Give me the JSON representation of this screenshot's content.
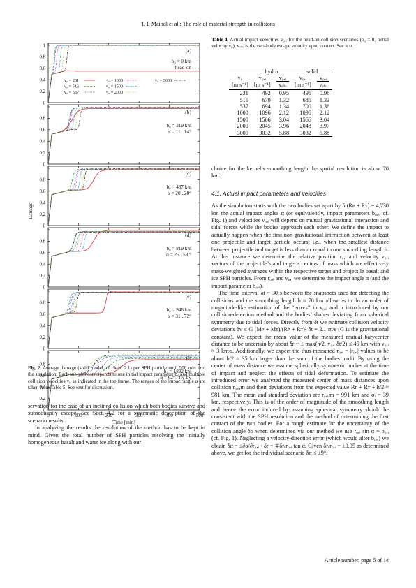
{
  "running_head": "T. I. Maindl  et al.: The role of material strength in collisions",
  "figure": {
    "y_axis_label": "Damage",
    "x_axis_label": "Time [min]",
    "x_ticks": [
      "0",
      "100",
      "200",
      "300",
      "400",
      "500"
    ],
    "y_ticks": [
      "0",
      "0.2",
      "0.4",
      "0.6",
      "0.8",
      "1"
    ],
    "legend": [
      {
        "label": "v₀ = 231",
        "color": "#e0262e",
        "dash": "solid"
      },
      {
        "label": "v₀ = 516",
        "color": "#2ca24a",
        "dash": "dashed"
      },
      {
        "label": "v₀ = 537",
        "color": "#2f3fd2",
        "dash": "dotted"
      },
      {
        "label": "v₀ = 1000",
        "color": "#d01ad0",
        "dash": "dotted"
      },
      {
        "label": "v₀ = 1500",
        "color": "#1cc6c6",
        "dash": "dashdot"
      },
      {
        "label": "v₀ = 2000",
        "color": "#d4b800",
        "dash": "dotted"
      },
      {
        "label": "v₀ = 3000",
        "color": "#333333",
        "dash": "dashdot"
      }
    ],
    "panels": [
      {
        "letter": "(a)",
        "line1": "b₀ = 0 km",
        "line2": "head-on"
      },
      {
        "letter": "(b)",
        "line1": "b₀ = 219 km",
        "line2": "α = 11...14°"
      },
      {
        "letter": "(c)",
        "line1": "b₀ = 437 km",
        "line2": "α = 20...28°"
      },
      {
        "letter": "(d)",
        "line1": "b₀ = 819 km",
        "line2": "α = 25...58 °"
      },
      {
        "letter": "(e)",
        "line1": "b₀ = 946 km",
        "line2": "α = 31...72°"
      },
      {
        "letter": "(f)",
        "line1": "b₀ = 1892 km",
        "line2": "α = 62° / fly-by"
      }
    ],
    "caption_label": "Fig. 2.",
    "caption_text": "Average damage (solid model, cf. Sect. 2.1) per SPH particle until 500 min into the simulation. Each sub-plot corresponds to one initial impact parameter b₀ and multiple collision velocities v₀ as indicated in the top frame. The ranges of the impact angle α are taken from Table 5. See text for discussion."
  },
  "left_body": [
    "servation for the case of an inclined collision which both bodies survive and subsequently escape. See Sect. 4.2 for a systematic description of the scenario results.",
    "In analyzing the results the resolution of the method has to be kept in mind. Given the total number of SPH particles resolving the initially homogeneous basalt and water ice along with our"
  ],
  "table": {
    "caption_label": "Table 4.",
    "caption_text": "Actual impact velocities v₀,ᵢ for the head-on collision scenarios (b₀ = 0, initial velocity v₀), vₑₛₒ is the two-body escape velocity upon contact. See text.",
    "group_hydro": "hydro",
    "group_solid": "solid",
    "col_v0": "v₀",
    "col_v0_unit": "[m s⁻¹]",
    "col_v0i": "v₀,ᵢ",
    "col_v0i_unit": "[m s⁻¹]",
    "col_ratio_num": "v₀,ᵢ",
    "col_ratio_den": "vₑₛₒ",
    "rows": [
      [
        "231",
        "492",
        "0.95",
        "496",
        "0.96"
      ],
      [
        "516",
        "679",
        "1.32",
        "685",
        "1.33"
      ],
      [
        "537",
        "694",
        "1.34",
        "700",
        "1.36"
      ],
      [
        "1000",
        "1096",
        "2.12",
        "1096",
        "2.12"
      ],
      [
        "1500",
        "1566",
        "3.04",
        "1566",
        "3.04"
      ],
      [
        "2000",
        "2045",
        "3.96",
        "2048",
        "3.97"
      ],
      [
        "3000",
        "3032",
        "5.88",
        "3032",
        "5.88"
      ]
    ]
  },
  "right_body": {
    "p1": "choice for the kernel’s smoothing length the spatial resolution is about 70 km.",
    "heading": "4.1. Actual impact parameters and velocities",
    "p2": "As the simulation starts with the two bodies set apart by 5 (Rᴘ + Rᴛ) = 4,730 km the actual impact angles α (or equivalently, impact parameters b₀,ᵢ, cf. Fig. 1) and velocities v₀,ᵢ will depend on mutual gravitational interaction and tidal forces while the bodies approach each other. We define the impact to actually happen when the first non-gravitational interaction between at least one projectile and target particle occurs; i.e., when the smallest distance between projectile and target is less than or equal to one smoothing length h. At this instance we determine the relative position r₀,ᵢ and velocity v₀,ᵢ vectors of the projectile’s and target’s centers of mass which are effectively mass-weighted averages within the respective target and projectile basalt and ice SPH particles. From r₀,ᵢ and v₀,ᵢ we determine the impact angle α (and the impact parameter b₀,ᵢ).",
    "p3": "The time interval δt = 30 s between the snapshots used for detecting the collisions and the smoothing length h ≈ 70 km allow us to do an order of magnitude-like estimation of the “errors” in v₀,ᵢ and α introduced by our collision-detection method and the bodies’ shapes deviating from spherical symmetry due to tidal forces. Directly from δt we estimate collision velocity deviations δv ≤ G (Mᴘ + Mᴛ)/(Rᴘ + Rᴛ)² δt = 2.1 m/s (G is the gravitational constant). We expect the mean value of the measured mutual barycenter distance to be uncertain by about δr = ± max(h/2, v₀,ᵢ δt/2) ≤ 45 km with v₀,ᵢ ≈ 3 km/s. Additionally, we expect the thus-measured r₀,ᵢ = |r₀,ᵢ| values to be about h/2 ≈ 35 km larger than the sum of the bodies’ radii. By using the center of mass distance we assume spherically symmetric bodies at the time of impact and neglect the effects of tidal deformation. To estimate the introduced error we analyzed the measured center of mass distances upon collision r₀,ᵢ,m and their deviations from the expected value Rᴘ + Rᴛ + h/2 ≈ 981 km. The mean and standard deviation are r₀,ᵢ,m = 991 km and σᵣ = 39 km, respectively. This is of the order of magnitude of the smoothing length and hence the error induced by assuming spherical symmetry should be consistent with the SPH resolution and the method of determining the first contact of the two bodies. For a rough estimate for the uncertainty of the collision angle δα when determined via our method we use r₀,ᵢ sin α = b₀,ᵢ (cf. Fig. 1). Neglecting a velocity-direction error (which would alter b₀,ᵢ) we obtain δα = ±∂α/∂r₀,ᵢ · δr = ∓δr/r₀,ᵢ tan α. Given δr/r₀,ᵢ = ±0.05 as determined above, we get for the individual scenario δα ≤ ±9°."
  },
  "footer": "Article number, page 5 of 14"
}
